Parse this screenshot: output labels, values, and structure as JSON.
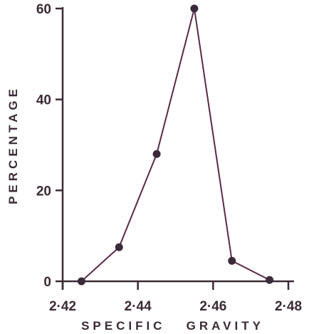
{
  "chart_data": {
    "type": "line",
    "title": "",
    "xlabel": "SPECIFIC   GRAVITY",
    "ylabel": "PERCENTAGE",
    "xlim": [
      2.42,
      2.48
    ],
    "ylim": [
      0,
      60
    ],
    "x_ticks": [
      "2·42",
      "2·44",
      "2·46",
      "2·48"
    ],
    "x_tick_values": [
      2.42,
      2.44,
      2.46,
      2.48
    ],
    "y_ticks": [
      "0",
      "20",
      "40",
      "60"
    ],
    "y_tick_values": [
      0,
      20,
      40,
      60
    ],
    "grid": false,
    "series": [
      {
        "x": [
          2.425,
          2.435,
          2.445,
          2.455,
          2.465,
          2.475
        ],
        "y": [
          0,
          7.5,
          28,
          60,
          4.5,
          0.3
        ]
      }
    ],
    "colors": {
      "line": "#5a2a48",
      "marker": "#3a2a3a",
      "axis": "#3b2a35"
    }
  }
}
